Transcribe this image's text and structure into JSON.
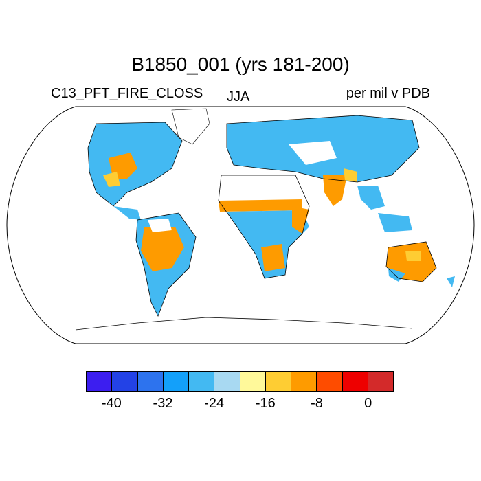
{
  "title": "B1850_001 (yrs 181-200)",
  "left_label": "C13_PFT_FIRE_CLOSS",
  "center_label": "JJA",
  "right_label": "per mil v PDB",
  "colorbar": {
    "colors": [
      "#3c1ef0",
      "#2342e6",
      "#2d73ee",
      "#13a0fa",
      "#43b9f2",
      "#a8d9f2",
      "#fff99a",
      "#fecd33",
      "#fe9b00",
      "#fe4c00",
      "#ee0000",
      "#d32a2a"
    ],
    "ticks": [
      "-40",
      "-32",
      "-24",
      "-16",
      "-8",
      "0"
    ]
  },
  "legend_colors": {
    "blue": "#43b9f2",
    "orange": "#fe9b00",
    "yellow": "#fecd33"
  }
}
